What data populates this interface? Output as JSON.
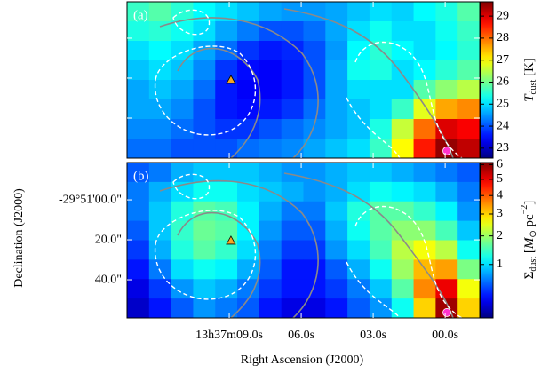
{
  "chart_data": [
    {
      "type": "heatmap",
      "panel_label": "(a)",
      "show_tick_labels": false,
      "xlim": [
        13.26,
        -1.44
      ],
      "ylim": [
        -18.2,
        60.0
      ],
      "xticks": [
        9,
        6,
        3,
        0
      ],
      "yticks": [
        0,
        20,
        40
      ],
      "zscale": "linear",
      "zlim": [
        22.55,
        29.65
      ],
      "zticks": [
        23,
        24,
        25,
        26,
        27,
        28,
        29
      ],
      "colorbar_label": [
        "T",
        "dust",
        " [K]"
      ],
      "z": [
        [
          25.6,
          25.8,
          25.5,
          25.2,
          25.0,
          24.8,
          24.6,
          24.5,
          24.5,
          24.6,
          24.8,
          25.0,
          24.9,
          25.2,
          25.4,
          25.8
        ],
        [
          25.4,
          25.5,
          25.3,
          25.0,
          24.6,
          24.3,
          24.0,
          24.0,
          24.2,
          24.6,
          25.0,
          25.3,
          25.0,
          25.0,
          25.3,
          25.6
        ],
        [
          25.0,
          25.2,
          25.0,
          24.6,
          24.2,
          23.8,
          23.6,
          23.7,
          24.0,
          24.5,
          25.2,
          25.5,
          25.2,
          25.0,
          25.2,
          25.5
        ],
        [
          24.8,
          25.0,
          24.8,
          24.4,
          23.8,
          23.5,
          23.4,
          23.6,
          24.0,
          24.6,
          25.3,
          25.4,
          25.0,
          25.2,
          25.5,
          25.8
        ],
        [
          24.6,
          24.8,
          24.6,
          24.2,
          23.6,
          23.4,
          23.4,
          23.6,
          24.0,
          24.6,
          25.0,
          25.0,
          25.0,
          25.8,
          26.2,
          26.5
        ],
        [
          24.6,
          24.6,
          24.4,
          24.0,
          23.6,
          23.5,
          23.6,
          23.8,
          24.2,
          24.6,
          24.8,
          25.0,
          25.6,
          26.8,
          27.6,
          27.8
        ],
        [
          24.4,
          24.4,
          24.2,
          24.0,
          23.8,
          23.8,
          24.0,
          24.2,
          24.4,
          24.6,
          24.8,
          25.4,
          26.6,
          28.0,
          29.0,
          28.8
        ],
        [
          24.2,
          24.2,
          24.0,
          24.0,
          24.0,
          24.2,
          24.3,
          24.4,
          24.6,
          24.8,
          25.0,
          25.6,
          27.0,
          28.6,
          29.5,
          29.2
        ]
      ],
      "points": [
        {
          "x": 8.93,
          "y": 20.9,
          "shape": "triangle",
          "color": "#f5a623"
        },
        {
          "x": -0.07,
          "y": 56.4,
          "shape": "circle",
          "color": "#ff33cc"
        }
      ]
    },
    {
      "type": "heatmap",
      "panel_label": "(b)",
      "show_tick_labels": true,
      "xlabel": "Right Ascension (J2000)",
      "ylabel": "Declination (J2000)",
      "xlim": [
        13.26,
        -1.44
      ],
      "ylim": [
        -18.7,
        59.1
      ],
      "xticks": [
        {
          "value": 9,
          "label": "13h37m09.0s"
        },
        {
          "value": 6,
          "label": "06.0s"
        },
        {
          "value": 3,
          "label": "03.0s"
        },
        {
          "value": 0,
          "label": "00.0s"
        }
      ],
      "yticks": [
        {
          "value": 0,
          "label": "-29°51'00.0\""
        },
        {
          "value": 20,
          "label": "20.0\""
        },
        {
          "value": 40,
          "label": "40.0\""
        }
      ],
      "zscale": "sqrt",
      "zlim": [
        0.05,
        6.15
      ],
      "zticks": [
        1,
        2,
        3,
        4,
        5,
        6
      ],
      "colorbar_label": [
        "Σ",
        "dust",
        " [",
        "M",
        "⊙",
        " pc",
        "−2",
        "]"
      ],
      "z": [
        [
          0.5,
          0.6,
          0.8,
          0.9,
          0.9,
          0.9,
          0.8,
          0.7,
          0.7,
          0.8,
          0.9,
          0.9,
          0.8,
          0.7,
          0.6,
          0.5
        ],
        [
          0.6,
          0.8,
          1.0,
          1.2,
          1.2,
          1.0,
          0.9,
          0.8,
          0.7,
          0.8,
          1.0,
          1.2,
          1.1,
          1.0,
          0.8,
          0.6
        ],
        [
          0.6,
          0.9,
          1.3,
          1.6,
          1.5,
          1.1,
          0.8,
          0.6,
          0.6,
          0.9,
          1.3,
          1.6,
          1.6,
          1.4,
          1.1,
          0.7
        ],
        [
          0.5,
          0.9,
          1.4,
          1.7,
          1.6,
          1.1,
          0.7,
          0.5,
          0.5,
          0.8,
          1.2,
          1.6,
          1.9,
          1.9,
          1.5,
          0.9
        ],
        [
          0.4,
          0.8,
          1.3,
          1.6,
          1.4,
          1.0,
          0.6,
          0.4,
          0.4,
          0.7,
          1.0,
          1.5,
          2.2,
          2.6,
          2.2,
          1.2
        ],
        [
          0.3,
          0.6,
          1.0,
          1.2,
          1.1,
          0.8,
          0.5,
          0.3,
          0.3,
          0.5,
          0.8,
          1.2,
          2.0,
          3.2,
          3.4,
          1.8
        ],
        [
          0.2,
          0.4,
          0.7,
          0.9,
          0.8,
          0.6,
          0.4,
          0.3,
          0.3,
          0.4,
          0.6,
          0.9,
          1.6,
          3.6,
          5.0,
          2.6
        ],
        [
          0.15,
          0.3,
          0.5,
          0.7,
          0.6,
          0.5,
          0.3,
          0.2,
          0.2,
          0.3,
          0.5,
          0.7,
          1.2,
          3.0,
          5.8,
          3.0
        ]
      ],
      "points": [
        {
          "x": 8.93,
          "y": 20.4,
          "shape": "triangle",
          "color": "#f5a623"
        },
        {
          "x": -0.07,
          "y": 56.4,
          "shape": "circle",
          "color": "#ff33cc"
        }
      ]
    }
  ]
}
